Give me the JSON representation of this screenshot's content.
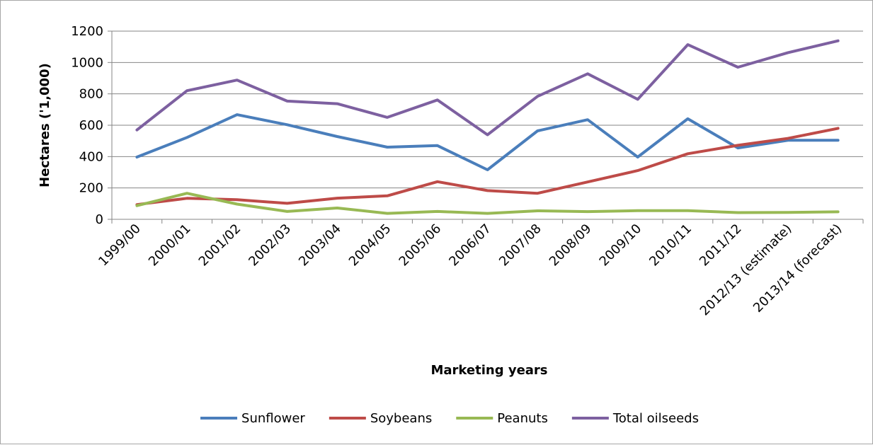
{
  "chart_data": {
    "type": "line",
    "title": "",
    "xlabel": "Marketing years",
    "ylabel": "Hectares ('1,000)",
    "categories": [
      "1999/00",
      "2000/01",
      "2001/02",
      "2002/03",
      "2003/04",
      "2004/05",
      "2005/06",
      "2006/07",
      "2007/08",
      "2008/09",
      "2009/10",
      "2010/11",
      "2011/12",
      "2012/13 (estimate)",
      "2013/14 (forecast)"
    ],
    "ylim": [
      0,
      1200
    ],
    "yticks": [
      0,
      200,
      400,
      600,
      800,
      1000,
      1200
    ],
    "grid": true,
    "legend_position": "bottom",
    "series": [
      {
        "name": "Sunflower",
        "color": "#4a7ebb",
        "values": [
          397,
          522,
          667,
          603,
          528,
          460,
          470,
          316,
          564,
          635,
          397,
          641,
          455,
          504,
          504
        ]
      },
      {
        "name": "Soybeans",
        "color": "#be4b48",
        "values": [
          94,
          134,
          125,
          102,
          135,
          150,
          240,
          183,
          166,
          238,
          311,
          418,
          472,
          516,
          580
        ]
      },
      {
        "name": "Peanuts",
        "color": "#98b954",
        "values": [
          87,
          166,
          97,
          50,
          72,
          38,
          50,
          38,
          54,
          49,
          55,
          55,
          43,
          44,
          48
        ]
      },
      {
        "name": "Total oilseeds",
        "color": "#7d60a0",
        "values": [
          570,
          820,
          888,
          754,
          737,
          650,
          761,
          539,
          784,
          928,
          765,
          1114,
          970,
          1063,
          1138
        ]
      }
    ]
  }
}
